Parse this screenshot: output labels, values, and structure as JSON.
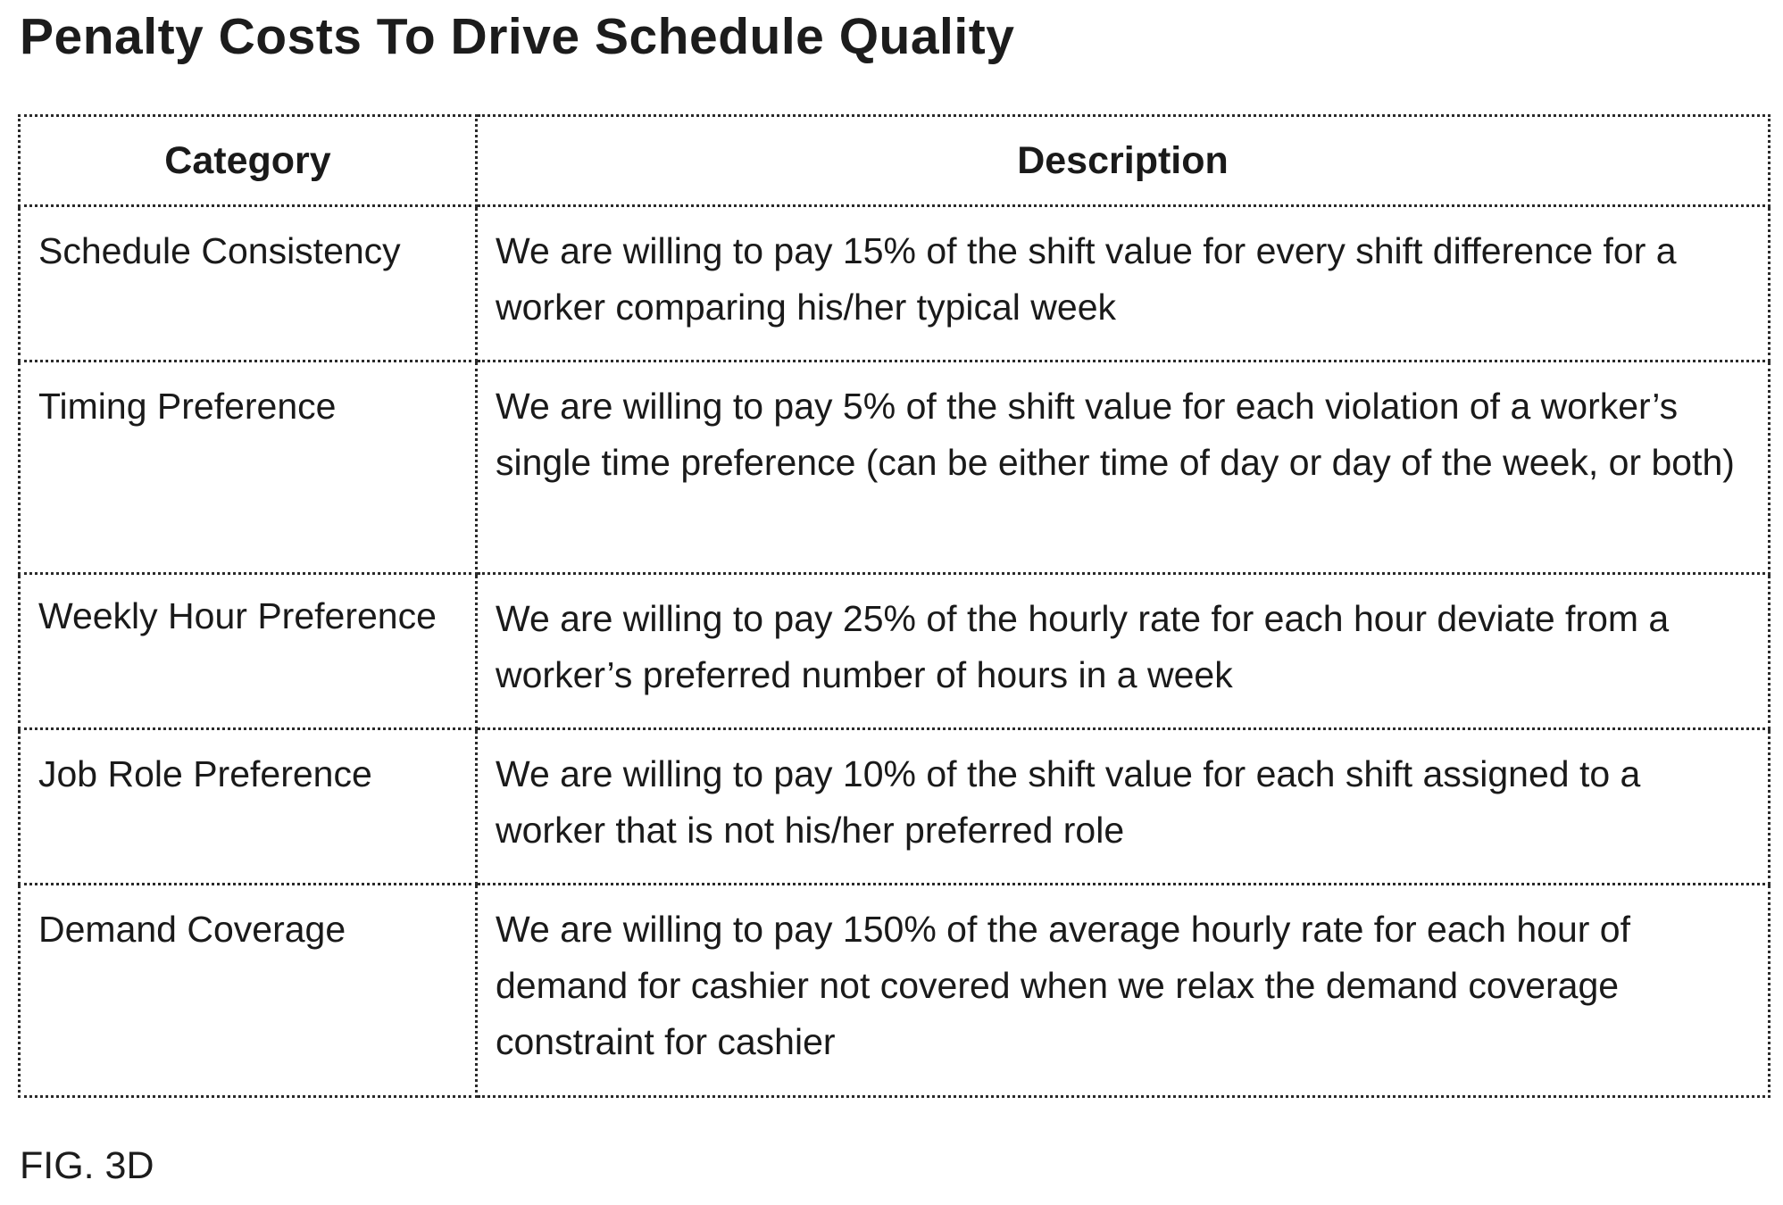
{
  "title": "Penalty Costs To Drive Schedule Quality",
  "table": {
    "headers": [
      "Category",
      "Description"
    ],
    "rows": [
      {
        "category": "Schedule Consistency",
        "description": "We are willing to pay 15% of the shift value for every shift difference for a worker comparing his/her typical week"
      },
      {
        "category": "Timing Preference",
        "description": "We are willing to pay 5% of the shift value for each violation of a worker’s single time preference (can be either time of day or day of the week, or both)"
      },
      {
        "category": "Weekly Hour Preference",
        "description": "We are willing to pay 25% of the hourly rate for each hour deviate from a worker’s preferred number of hours in a week"
      },
      {
        "category": "Job Role Preference",
        "description": "We are willing to pay 10% of the shift value for each shift assigned to a worker that is not his/her preferred role"
      },
      {
        "category": "Demand Coverage",
        "description": "We are willing to pay 150% of the average hourly rate for each hour of demand for cashier not covered when we relax the demand coverage constraint for cashier"
      }
    ]
  },
  "figure_label": "FIG. 3D"
}
